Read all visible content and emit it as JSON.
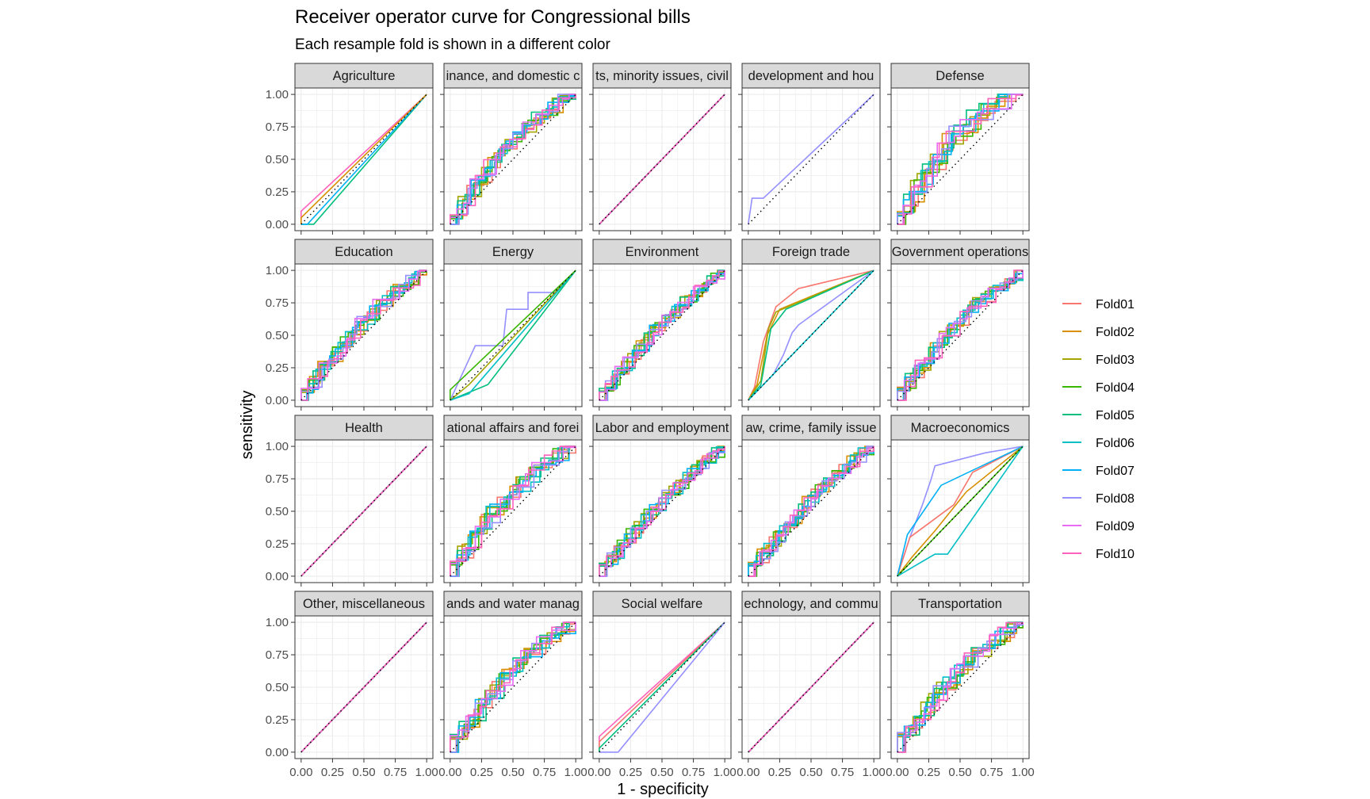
{
  "title": "Receiver operator curve for Congressional bills",
  "subtitle": "Each resample fold is shown in a different color",
  "chart_data": {
    "type": "line",
    "xlabel": "1 - specificity",
    "ylabel": "sensitivity",
    "xlim": [
      0,
      1
    ],
    "ylim": [
      0,
      1
    ],
    "grid": true,
    "legend_position": "right",
    "x_tick_labels": [
      "0.00",
      "0.25",
      "0.50",
      "0.75",
      "1.00"
    ],
    "y_tick_labels": [
      "0.00",
      "0.25",
      "0.50",
      "0.75",
      "1.00"
    ],
    "reference_line": "diagonal",
    "fold_names": [
      "Fold01",
      "Fold02",
      "Fold03",
      "Fold04",
      "Fold05",
      "Fold06",
      "Fold07",
      "Fold08",
      "Fold09",
      "Fold10"
    ],
    "fold_colors": [
      "#F8766D",
      "#D89000",
      "#A3A500",
      "#39B600",
      "#00BF7D",
      "#00BFC4",
      "#00B0F6",
      "#9590FF",
      "#E76BF3",
      "#FF62BC"
    ],
    "panels": [
      {
        "name": "Agriculture",
        "kind": "segments",
        "series": {
          "Fold10": [
            [
              0,
              0
            ],
            [
              0,
              0.1
            ],
            [
              1,
              1
            ]
          ],
          "Fold05": [
            [
              0,
              0
            ],
            [
              0.1,
              0
            ],
            [
              1,
              1
            ]
          ],
          "Fold07": [
            [
              0,
              0
            ],
            [
              0.05,
              0
            ],
            [
              1,
              1
            ]
          ],
          "Fold02": [
            [
              0,
              0
            ],
            [
              0,
              0.05
            ],
            [
              1,
              1
            ]
          ]
        }
      },
      {
        "name": "Banking, finance, and domestic commerce",
        "display": "inance, and domestic c",
        "kind": "roc",
        "spread": 0.13
      },
      {
        "name": "Civil rights, minority issues, civil liberties",
        "display": "ts, minority issues, civil",
        "kind": "diag"
      },
      {
        "name": "Community development and housing issues",
        "display": "development and hou",
        "kind": "segments",
        "series": {
          "Fold08": [
            [
              0,
              0
            ],
            [
              0.03,
              0.2
            ],
            [
              0.12,
              0.2
            ],
            [
              1,
              1
            ]
          ]
        }
      },
      {
        "name": "Defense",
        "kind": "roc",
        "spread": 0.2
      },
      {
        "name": "Education",
        "kind": "roc",
        "spread": 0.1
      },
      {
        "name": "Energy",
        "kind": "segments",
        "series": {
          "Fold08": [
            [
              0,
              0
            ],
            [
              0.2,
              0.42
            ],
            [
              0.42,
              0.42
            ],
            [
              0.45,
              0.7
            ],
            [
              0.62,
              0.7
            ],
            [
              0.62,
              0.83
            ],
            [
              0.82,
              0.83
            ],
            [
              1,
              1
            ]
          ],
          "Fold03": [
            [
              0,
              0
            ],
            [
              0.15,
              0.12
            ],
            [
              1,
              1
            ]
          ],
          "Fold05": [
            [
              0,
              0
            ],
            [
              0.3,
              0.12
            ],
            [
              1,
              1
            ]
          ],
          "Fold06": [
            [
              0,
              0
            ],
            [
              0.15,
              0.05
            ],
            [
              1,
              1
            ]
          ],
          "Fold04": [
            [
              0,
              0
            ],
            [
              0,
              0.08
            ],
            [
              1,
              1
            ]
          ]
        }
      },
      {
        "name": "Environment",
        "kind": "roc",
        "spread": 0.08
      },
      {
        "name": "Foreign trade",
        "kind": "segments",
        "series": {
          "Fold01": [
            [
              0,
              0
            ],
            [
              0.05,
              0.1
            ],
            [
              0.12,
              0.45
            ],
            [
              0.22,
              0.72
            ],
            [
              0.4,
              0.86
            ],
            [
              1,
              1
            ]
          ],
          "Fold02": [
            [
              0,
              0
            ],
            [
              0.07,
              0.12
            ],
            [
              0.15,
              0.5
            ],
            [
              0.25,
              0.7
            ],
            [
              1,
              1
            ]
          ],
          "Fold03": [
            [
              0,
              0
            ],
            [
              0.1,
              0.15
            ],
            [
              0.16,
              0.55
            ],
            [
              0.22,
              0.68
            ],
            [
              1,
              1
            ]
          ],
          "Fold05": [
            [
              0,
              0
            ],
            [
              0.1,
              0.12
            ],
            [
              0.18,
              0.55
            ],
            [
              0.3,
              0.7
            ],
            [
              1,
              1
            ]
          ],
          "Fold08": [
            [
              0,
              0
            ],
            [
              0.2,
              0.2
            ],
            [
              0.28,
              0.35
            ],
            [
              0.35,
              0.52
            ],
            [
              0.4,
              0.58
            ],
            [
              1,
              1
            ]
          ],
          "Fold06": [
            [
              0,
              0
            ],
            [
              1,
              1
            ]
          ]
        }
      },
      {
        "name": "Government operations",
        "kind": "roc",
        "spread": 0.1
      },
      {
        "name": "Health",
        "kind": "diag"
      },
      {
        "name": "International affairs and foreign aid",
        "display": "ational affairs and forei",
        "kind": "roc",
        "spread": 0.14
      },
      {
        "name": "Labor and employment",
        "display": "Labor and employment",
        "kind": "roc",
        "spread": 0.07
      },
      {
        "name": "Law, crime, family issues",
        "display": "aw, crime, family issue",
        "kind": "roc",
        "spread": 0.08
      },
      {
        "name": "Macroeconomics",
        "kind": "segments",
        "series": {
          "Fold08": [
            [
              0,
              0
            ],
            [
              0.1,
              0.3
            ],
            [
              0.2,
              0.55
            ],
            [
              0.27,
              0.75
            ],
            [
              0.3,
              0.85
            ],
            [
              0.7,
              0.95
            ],
            [
              1,
              1
            ]
          ],
          "Fold01": [
            [
              0,
              0
            ],
            [
              0.1,
              0.3
            ],
            [
              0.45,
              0.55
            ],
            [
              0.6,
              0.8
            ],
            [
              1,
              1
            ]
          ],
          "Fold07": [
            [
              0,
              0
            ],
            [
              0.08,
              0.32
            ],
            [
              0.35,
              0.7
            ],
            [
              1,
              1
            ]
          ],
          "Fold02": [
            [
              0,
              0
            ],
            [
              0.12,
              0.15
            ],
            [
              0.3,
              0.35
            ],
            [
              0.55,
              0.65
            ],
            [
              1,
              1
            ]
          ],
          "Fold04": [
            [
              0,
              0
            ],
            [
              0.1,
              0.1
            ],
            [
              0.42,
              0.42
            ],
            [
              1,
              1
            ]
          ],
          "Fold06": [
            [
              0,
              0
            ],
            [
              0.3,
              0.17
            ],
            [
              0.4,
              0.17
            ],
            [
              1,
              1
            ]
          ]
        }
      },
      {
        "name": "Other, miscellaneous",
        "display": "Other, miscellaneous",
        "kind": "diag"
      },
      {
        "name": "Public lands and water management",
        "display": "ands and water manag",
        "kind": "roc",
        "spread": 0.12
      },
      {
        "name": "Social welfare",
        "kind": "segments",
        "series": {
          "Fold10": [
            [
              0,
              0
            ],
            [
              0,
              0.12
            ],
            [
              1,
              1
            ]
          ],
          "Fold01": [
            [
              0,
              0
            ],
            [
              0,
              0.08
            ],
            [
              1,
              1
            ]
          ],
          "Fold05": [
            [
              0,
              0
            ],
            [
              0,
              0.03
            ],
            [
              1,
              1
            ]
          ],
          "Fold08": [
            [
              0,
              0
            ],
            [
              0.15,
              0
            ],
            [
              1,
              1
            ]
          ]
        }
      },
      {
        "name": "Space, science, technology, and communications",
        "display": "echnology, and commu",
        "kind": "diag"
      },
      {
        "name": "Transportation",
        "kind": "roc",
        "spread": 0.12
      }
    ]
  }
}
